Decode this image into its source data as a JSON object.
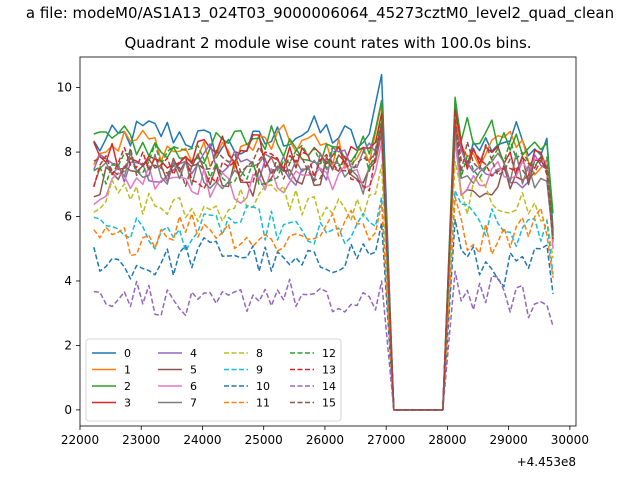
{
  "suptitle": "a file: modeM0/AS1A13_024T03_9000006064_45273cztM0_level2_quad_clean",
  "chart_data": {
    "type": "line",
    "title": "Quadrant 2 module wise count rates with 100.0s bins.",
    "xlabel": "",
    "ylabel": "",
    "x_offset_label": "+4.453e8",
    "xlim": [
      22000,
      30100
    ],
    "ylim": [
      -0.5,
      10.95
    ],
    "xticks": [
      22000,
      23000,
      24000,
      25000,
      26000,
      27000,
      28000,
      29000,
      30000
    ],
    "xtick_labels": [
      "22000",
      "23000",
      "24000",
      "25000",
      "26000",
      "27000",
      "28000",
      "29000",
      "30000"
    ],
    "yticks": [
      0,
      2,
      4,
      6,
      8,
      10
    ],
    "ytick_labels": [
      "0",
      "2",
      "4",
      "6",
      "8",
      "10"
    ],
    "grid": false,
    "legend_position": "lower-left",
    "legend_columns": 4,
    "x": [
      22225,
      27125,
      28025,
      29725
    ],
    "segments": {
      "before_gap": [
        22225,
        26925
      ],
      "gap_drop": [
        27125
      ],
      "zero_level": [
        27125,
        27925
      ],
      "after_gap": [
        28125,
        29725
      ]
    },
    "series": [
      {
        "name": "0",
        "color": "#1f77b4",
        "style": "solid",
        "mean_before": 8.4,
        "mean_after": 8.2,
        "peak_before": 10.4,
        "peak_after": 9.4,
        "end": 5.6
      },
      {
        "name": "1",
        "color": "#ff7f0e",
        "style": "solid",
        "mean_before": 8.1,
        "mean_after": 7.9,
        "peak_before": 9.5,
        "peak_after": 9.0,
        "end": 5.4
      },
      {
        "name": "2",
        "color": "#2ca02c",
        "style": "solid",
        "mean_before": 8.2,
        "mean_after": 8.3,
        "peak_before": 9.6,
        "peak_after": 9.7,
        "end": 6.1
      },
      {
        "name": "3",
        "color": "#d62728",
        "style": "solid",
        "mean_before": 7.9,
        "mean_after": 7.8,
        "peak_before": 9.2,
        "peak_after": 9.3,
        "end": 5.5
      },
      {
        "name": "4",
        "color": "#9467bd",
        "style": "solid",
        "mean_before": 7.6,
        "mean_after": 7.5,
        "peak_before": 8.9,
        "peak_after": 8.8,
        "end": 5.3
      },
      {
        "name": "5",
        "color": "#8c564b",
        "style": "solid",
        "mean_before": 7.3,
        "mean_after": 7.3,
        "peak_before": 8.6,
        "peak_after": 8.6,
        "end": 5.2
      },
      {
        "name": "6",
        "color": "#e377c2",
        "style": "solid",
        "mean_before": 7.1,
        "mean_after": 7.1,
        "peak_before": 8.3,
        "peak_after": 8.4,
        "end": 5.0
      },
      {
        "name": "7",
        "color": "#7f7f7f",
        "style": "solid",
        "mean_before": 7.4,
        "mean_after": 7.4,
        "peak_before": 8.7,
        "peak_after": 8.7,
        "end": 5.3
      },
      {
        "name": "8",
        "color": "#bcbd22",
        "style": "dashed",
        "mean_before": 6.4,
        "mean_after": 6.4,
        "peak_before": 7.6,
        "peak_after": 7.7,
        "end": 4.7
      },
      {
        "name": "9",
        "color": "#17becf",
        "style": "dashed",
        "mean_before": 5.6,
        "mean_after": 5.7,
        "peak_before": 6.6,
        "peak_after": 6.8,
        "end": 4.2
      },
      {
        "name": "10",
        "color": "#1f77b4",
        "style": "dashed",
        "mean_before": 4.7,
        "mean_after": 4.6,
        "peak_before": 5.8,
        "peak_after": 5.9,
        "end": 3.6
      },
      {
        "name": "11",
        "color": "#ff7f0e",
        "style": "dashed",
        "mean_before": 5.5,
        "mean_after": 5.6,
        "peak_before": 6.4,
        "peak_after": 6.6,
        "end": 4.1
      },
      {
        "name": "12",
        "color": "#2ca02c",
        "style": "dashed",
        "mean_before": 7.7,
        "mean_after": 7.7,
        "peak_before": 9.0,
        "peak_after": 9.1,
        "end": 5.4
      },
      {
        "name": "13",
        "color": "#d62728",
        "style": "dashed",
        "mean_before": 7.5,
        "mean_after": 7.6,
        "peak_before": 8.8,
        "peak_after": 9.0,
        "end": 5.3
      },
      {
        "name": "14",
        "color": "#9467bd",
        "style": "dashed",
        "mean_before": 3.4,
        "mean_after": 3.4,
        "peak_before": 4.0,
        "peak_after": 4.3,
        "end": 2.6
      },
      {
        "name": "15",
        "color": "#8c564b",
        "style": "dashed",
        "mean_before": 7.6,
        "mean_after": 7.6,
        "peak_before": 8.9,
        "peak_after": 8.9,
        "end": 5.4
      }
    ]
  }
}
